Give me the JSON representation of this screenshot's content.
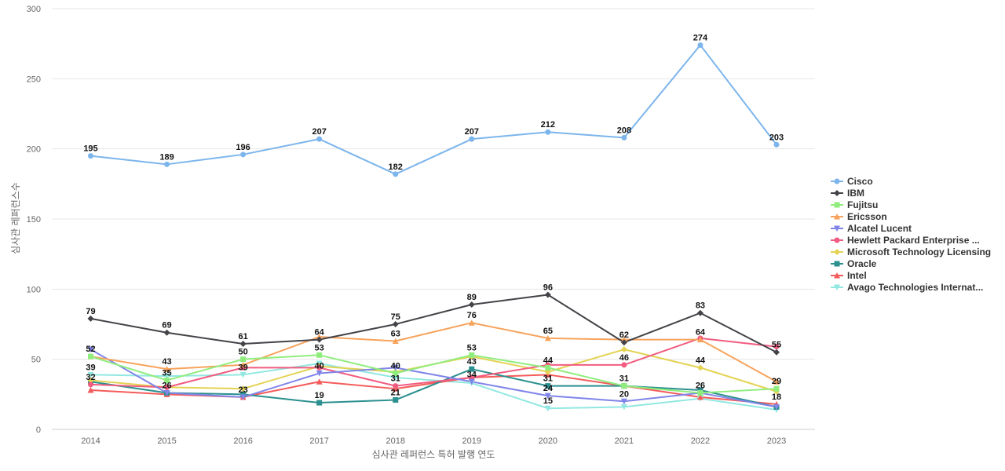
{
  "chart_data": {
    "type": "line",
    "xlabel": "심사관 레퍼런스 특허 발행 연도",
    "ylabel": "심사관 레퍼런스수",
    "ylim": [
      0,
      300
    ],
    "yticks": [
      0,
      50,
      100,
      150,
      200,
      250,
      300
    ],
    "grid": true,
    "legend_position": "right",
    "categories": [
      "2014",
      "2015",
      "2016",
      "2017",
      "2018",
      "2019",
      "2020",
      "2021",
      "2022",
      "2023"
    ],
    "series": [
      {
        "name": "Cisco",
        "color": "#7cb5ec",
        "marker": "circle",
        "values": [
          195,
          189,
          196,
          207,
          182,
          207,
          212,
          208,
          274,
          203
        ],
        "show_labels": true
      },
      {
        "name": "IBM",
        "color": "#434348",
        "marker": "diamond",
        "values": [
          79,
          69,
          61,
          64,
          75,
          89,
          96,
          62,
          83,
          55
        ],
        "show_labels": true
      },
      {
        "name": "Fujitsu",
        "color": "#90ed7d",
        "marker": "square",
        "values": [
          52,
          35,
          50,
          53,
          40,
          53,
          44,
          31,
          26,
          29
        ],
        "show_labels": true
      },
      {
        "name": "Ericsson",
        "color": "#f7a35c",
        "marker": "triangle",
        "values": [
          52,
          43,
          46,
          66,
          63,
          76,
          65,
          64,
          64,
          34
        ],
        "show_labels": false
      },
      {
        "name": "Alcatel Lucent",
        "color": "#8085e9",
        "marker": "triangle-down",
        "values": [
          57,
          26,
          23,
          40,
          44,
          34,
          24,
          20,
          26,
          16
        ],
        "show_labels": false
      },
      {
        "name": "Hewlett Packard Enterprise ...",
        "color": "#f15c80",
        "marker": "circle",
        "values": [
          32,
          30,
          44,
          44,
          31,
          37,
          46,
          46,
          65,
          59
        ],
        "show_labels": false
      },
      {
        "name": "Microsoft Technology Licensing",
        "color": "#e4d354",
        "marker": "diamond",
        "values": [
          35,
          30,
          29,
          45,
          41,
          52,
          41,
          57,
          44,
          27
        ],
        "show_labels": false
      },
      {
        "name": "Oracle",
        "color": "#2b908f",
        "marker": "square",
        "values": [
          34,
          26,
          25,
          19,
          21,
          43,
          31,
          31,
          28,
          16
        ],
        "show_labels": false
      },
      {
        "name": "Intel",
        "color": "#f45b5b",
        "marker": "triangle",
        "values": [
          28,
          25,
          23,
          34,
          29,
          37,
          39,
          31,
          23,
          18
        ],
        "show_labels": false
      },
      {
        "name": "Avago Technologies Internat...",
        "color": "#91e8e1",
        "marker": "triangle-down",
        "values": [
          39,
          38,
          39,
          47,
          37,
          33,
          15,
          16,
          22,
          14
        ],
        "show_labels": false
      }
    ],
    "data_labels": [
      {
        "x": "2014",
        "y": 195,
        "text": "195"
      },
      {
        "x": "2015",
        "y": 189,
        "text": "189"
      },
      {
        "x": "2016",
        "y": 196,
        "text": "196"
      },
      {
        "x": "2017",
        "y": 207,
        "text": "207"
      },
      {
        "x": "2018",
        "y": 182,
        "text": "182"
      },
      {
        "x": "2019",
        "y": 207,
        "text": "207"
      },
      {
        "x": "2020",
        "y": 212,
        "text": "212"
      },
      {
        "x": "2021",
        "y": 208,
        "text": "208"
      },
      {
        "x": "2022",
        "y": 274,
        "text": "274"
      },
      {
        "x": "2023",
        "y": 203,
        "text": "203"
      },
      {
        "x": "2014",
        "y": 79,
        "text": "79"
      },
      {
        "x": "2015",
        "y": 69,
        "text": "69"
      },
      {
        "x": "2016",
        "y": 61,
        "text": "61"
      },
      {
        "x": "2017",
        "y": 64,
        "text": "64"
      },
      {
        "x": "2018",
        "y": 75,
        "text": "75"
      },
      {
        "x": "2019",
        "y": 89,
        "text": "89"
      },
      {
        "x": "2020",
        "y": 96,
        "text": "96"
      },
      {
        "x": "2021",
        "y": 62,
        "text": "62"
      },
      {
        "x": "2022",
        "y": 83,
        "text": "83"
      },
      {
        "x": "2023",
        "y": 55,
        "text": "55"
      },
      {
        "x": "2014",
        "y": 52,
        "text": "52"
      },
      {
        "x": "2015",
        "y": 43,
        "text": "43"
      },
      {
        "x": "2016",
        "y": 50,
        "text": "50"
      },
      {
        "x": "2017",
        "y": 53,
        "text": "53"
      },
      {
        "x": "2018",
        "y": 63,
        "text": "63"
      },
      {
        "x": "2019",
        "y": 76,
        "text": "76"
      },
      {
        "x": "2020",
        "y": 65,
        "text": "65"
      },
      {
        "x": "2021",
        "y": 46,
        "text": "46"
      },
      {
        "x": "2022",
        "y": 64,
        "text": "64"
      },
      {
        "x": "2023",
        "y": 29,
        "text": "29"
      },
      {
        "x": "2014",
        "y": 39,
        "text": "39"
      },
      {
        "x": "2015",
        "y": 35,
        "text": "35"
      },
      {
        "x": "2016",
        "y": 39,
        "text": "39"
      },
      {
        "x": "2017",
        "y": 40,
        "text": "40"
      },
      {
        "x": "2018",
        "y": 40,
        "text": "40"
      },
      {
        "x": "2019",
        "y": 53,
        "text": "53"
      },
      {
        "x": "2020",
        "y": 44,
        "text": "44"
      },
      {
        "x": "2021",
        "y": 31,
        "text": "31"
      },
      {
        "x": "2022",
        "y": 44,
        "text": "44"
      },
      {
        "x": "2023",
        "y": 18,
        "text": "18"
      },
      {
        "x": "2014",
        "y": 32,
        "text": "32"
      },
      {
        "x": "2015",
        "y": 26,
        "text": "26"
      },
      {
        "x": "2016",
        "y": 23,
        "text": "23"
      },
      {
        "x": "2017",
        "y": 19,
        "text": "19"
      },
      {
        "x": "2018",
        "y": 31,
        "text": "31"
      },
      {
        "x": "2019",
        "y": 43,
        "text": "43"
      },
      {
        "x": "2020",
        "y": 31,
        "text": "31"
      },
      {
        "x": "2021",
        "y": 20,
        "text": "20"
      },
      {
        "x": "2022",
        "y": 26,
        "text": "26"
      },
      {
        "x": "2018",
        "y": 21,
        "text": "21"
      },
      {
        "x": "2019",
        "y": 34,
        "text": "34"
      },
      {
        "x": "2020",
        "y": 24,
        "text": "24"
      },
      {
        "x": "2020",
        "y": 15,
        "text": "15"
      }
    ]
  }
}
